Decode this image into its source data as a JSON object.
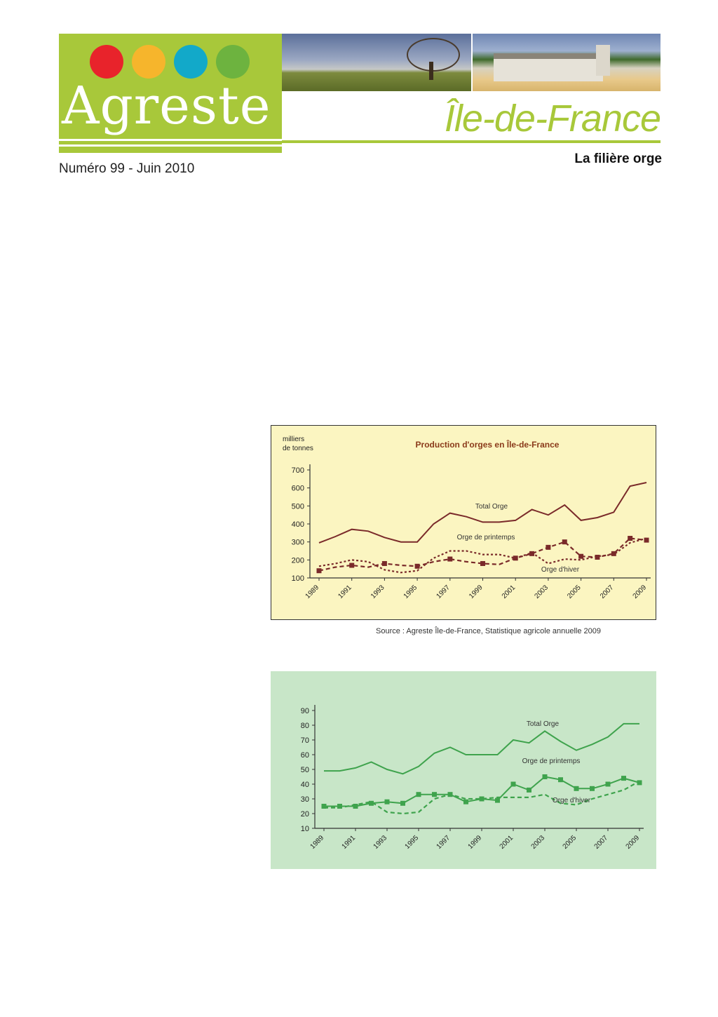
{
  "header": {
    "logo": "Agreste",
    "region": "Île-de-France",
    "issue": "Numéro 99 - Juin 2010",
    "subject": "La filière orge",
    "dot_colors": [
      "#e8232b",
      "#f6b52c",
      "#12a9c9",
      "#6db33f"
    ],
    "brand_color": "#a8c83a"
  },
  "source_note": "Source : Agreste Île-de-France, Statistique agricole annuelle 2009",
  "chart_data": [
    {
      "type": "line",
      "title": "Production d'orges en Île-de-France",
      "ylabel": "milliers de tonnes",
      "ylim": [
        100,
        700
      ],
      "yticks": [
        100,
        200,
        300,
        400,
        500,
        600,
        700
      ],
      "x": [
        1989,
        1990,
        1991,
        1992,
        1993,
        1994,
        1995,
        1996,
        1997,
        1998,
        1999,
        2000,
        2001,
        2002,
        2003,
        2004,
        2005,
        2006,
        2007,
        2008,
        2009
      ],
      "xtick_labels": [
        "1989",
        "1991",
        "1993",
        "1995",
        "1997",
        "1999",
        "2001",
        "2003",
        "2005",
        "2007",
        "2009"
      ],
      "background": "#fbf5c1",
      "series": [
        {
          "name": "Total Orge",
          "style": "solid",
          "markers": false,
          "color": "#7a2a2a",
          "values": [
            295,
            330,
            370,
            360,
            325,
            300,
            300,
            400,
            460,
            440,
            410,
            410,
            420,
            480,
            450,
            505,
            420,
            435,
            465,
            610,
            630
          ]
        },
        {
          "name": "Orge de printemps",
          "style": "dashed",
          "markers": true,
          "color": "#7a2a2a",
          "values": [
            140,
            160,
            170,
            160,
            180,
            170,
            165,
            190,
            205,
            190,
            180,
            175,
            210,
            235,
            270,
            300,
            220,
            215,
            235,
            320,
            310
          ]
        },
        {
          "name": "Orge d'hiver",
          "style": "dotted",
          "markers": false,
          "color": "#7a2a2a",
          "values": [
            165,
            180,
            200,
            190,
            145,
            130,
            140,
            210,
            250,
            250,
            230,
            230,
            210,
            240,
            180,
            205,
            200,
            220,
            230,
            295,
            320
          ]
        }
      ]
    },
    {
      "type": "line",
      "title": "",
      "ylim": [
        10,
        90
      ],
      "yticks": [
        10,
        20,
        30,
        40,
        50,
        60,
        70,
        80,
        90
      ],
      "x": [
        1989,
        1990,
        1991,
        1992,
        1993,
        1994,
        1995,
        1996,
        1997,
        1998,
        1999,
        2000,
        2001,
        2002,
        2003,
        2004,
        2005,
        2006,
        2007,
        2008,
        2009
      ],
      "xtick_labels": [
        "1989",
        "1991",
        "1993",
        "1995",
        "1997",
        "1999",
        "2001",
        "2003",
        "2005",
        "2007",
        "2009"
      ],
      "background": "#c8e6c8",
      "series": [
        {
          "name": "Total Orge",
          "style": "solid",
          "markers": false,
          "color": "#3fa34d",
          "values": [
            49,
            49,
            51,
            55,
            50,
            47,
            52,
            61,
            65,
            60,
            60,
            60,
            70,
            68,
            76,
            69,
            63,
            67,
            72,
            81,
            81
          ]
        },
        {
          "name": "Orge de printemps",
          "style": "solid",
          "markers": true,
          "color": "#3fa34d",
          "values": [
            25,
            25,
            25,
            27,
            28,
            27,
            33,
            33,
            33,
            28,
            30,
            29,
            40,
            36,
            45,
            43,
            37,
            37,
            40,
            44,
            41
          ]
        },
        {
          "name": "Orge d'hiver",
          "style": "dashed",
          "markers": false,
          "color": "#3fa34d",
          "values": [
            24,
            24,
            26,
            28,
            21,
            20,
            21,
            30,
            33,
            30,
            30,
            31,
            31,
            31,
            33,
            27,
            26,
            30,
            33,
            36,
            42
          ]
        }
      ],
      "series_label_override": [
        "Total Orge",
        "Orge de printemps",
        "Orge d'hiver"
      ]
    }
  ]
}
